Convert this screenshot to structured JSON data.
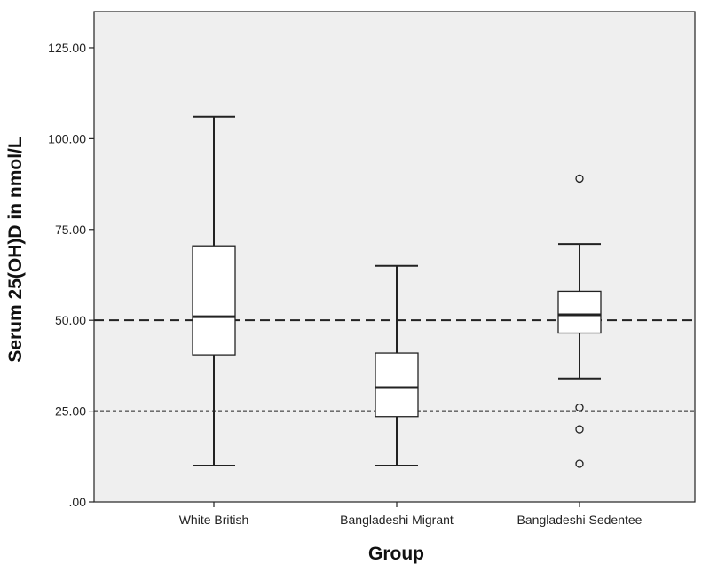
{
  "chart_data": {
    "type": "box",
    "title": "",
    "xlabel": "Group",
    "ylabel": "Serum 25(OH)D in nmol/L",
    "ylim": [
      0,
      135
    ],
    "y_ticks": [
      0,
      25,
      50,
      75,
      100,
      125
    ],
    "y_tick_labels": [
      ".00",
      "25.00",
      "50.00",
      "75.00",
      "100.00",
      "125.00"
    ],
    "categories": [
      "White British",
      "Bangladeshi Migrant",
      "Bangladeshi Sedentee"
    ],
    "boxes": [
      {
        "category": "White British",
        "whisker_low": 10,
        "q1": 40.5,
        "median": 51,
        "q3": 70.5,
        "whisker_high": 106,
        "outliers": []
      },
      {
        "category": "Bangladeshi Migrant",
        "whisker_low": 10,
        "q1": 23.5,
        "median": 31.5,
        "q3": 41,
        "whisker_high": 65,
        "outliers": []
      },
      {
        "category": "Bangladeshi Sedentee",
        "whisker_low": 34,
        "q1": 46.5,
        "median": 51.5,
        "q3": 58,
        "whisker_high": 71,
        "outliers": [
          89,
          26,
          20,
          10.5
        ]
      }
    ],
    "reference_lines": [
      {
        "value": 50,
        "style": "dashed"
      },
      {
        "value": 25,
        "style": "dotted"
      }
    ],
    "grid": false,
    "legend": "none",
    "colors": {
      "plot_background": "#efefef",
      "box_fill": "#ffffff",
      "stroke": "#222222"
    }
  }
}
